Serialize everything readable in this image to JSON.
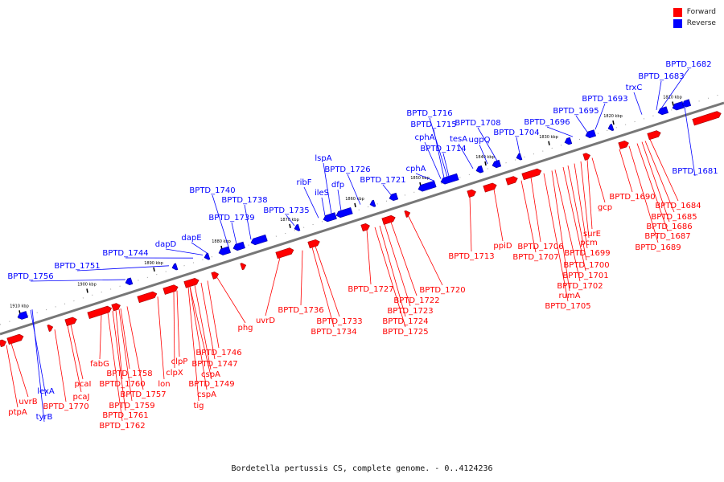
{
  "legend": [
    {
      "label": "Forward",
      "color": "#ff0000"
    },
    {
      "label": "Reverse",
      "color": "#0000ff"
    }
  ],
  "caption": "Bordetella pertussis CS, complete genome. - 0..4124236",
  "ticks": [
    "1810 kbp",
    "1820 kbp",
    "1830 kbp",
    "1840 kbp",
    "1850 kbp",
    "1860 kbp",
    "1870 kbp",
    "1880 kbp",
    "1890 kbp",
    "1900 kbp",
    "1910 kbp"
  ],
  "genes": {
    "reverse": [
      "BPTD_1682",
      "BPTD_1683",
      "trxC",
      "BPTD_1693",
      "BPTD_1695",
      "BPTD_1696",
      "BPTD_1704",
      "BPTD_1708",
      "ugpQ",
      "tesA",
      "BPTD_1714",
      "cphA",
      "BPTD_1715",
      "BPTD_1716",
      "cphA",
      "BPTD_1721",
      "BPTD_1726",
      "dfp",
      "lspA",
      "ileS",
      "ribF",
      "BPTD_1735",
      "BPTD_1738",
      "BPTD_1739",
      "BPTD_1740",
      "dapE",
      "dapD",
      "BPTD_1744",
      "BPTD_1751",
      "BPTD_1756",
      "lexA",
      "tyrB",
      "BPTD_1681"
    ],
    "forward": [
      "BPTD_1684",
      "BPTD_1685",
      "BPTD_1686",
      "BPTD_1687",
      "BPTD_1689",
      "BPTD_1690",
      "gcp",
      "surE",
      "pcm",
      "BPTD_1699",
      "BPTD_1700",
      "BPTD_1701",
      "BPTD_1702",
      "rumA",
      "BPTD_1705",
      "BPTD_1706",
      "BPTD_1707",
      "ppiD",
      "BPTD_1713",
      "BPTD_1720",
      "BPTD_1722",
      "BPTD_1723",
      "BPTD_1724",
      "BPTD_1725",
      "BPTD_1727",
      "BPTD_1733",
      "BPTD_1734",
      "BPTD_1736",
      "uvrD",
      "phg",
      "BPTD_1746",
      "BPTD_1747",
      "cspA",
      "BPTD_1749",
      "cspA",
      "tig",
      "clpP",
      "clpX",
      "lon",
      "BPTD_1757",
      "BPTD_1758",
      "BPTD_1759",
      "BPTD_1760",
      "BPTD_1761",
      "BPTD_1762",
      "fabG",
      "pcaI",
      "pcaJ",
      "BPTD_1770",
      "uvrB",
      "ptpA"
    ]
  }
}
